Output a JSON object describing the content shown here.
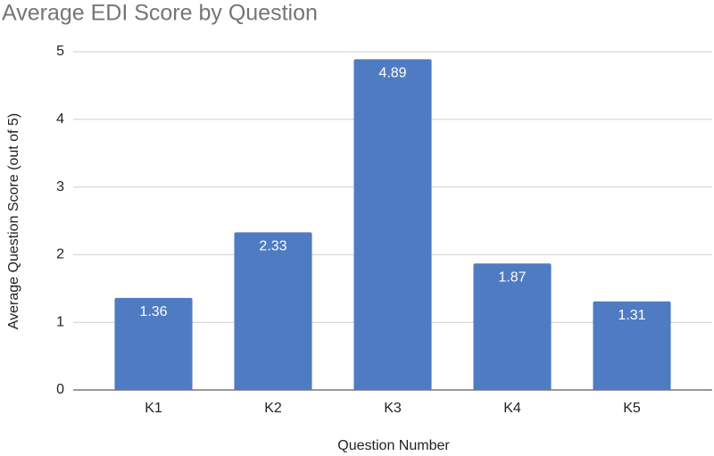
{
  "chart_data": {
    "type": "bar",
    "title": "Average EDI Score by Question",
    "x_label": "Question Number",
    "y_label": "Average Question Score (out of 5)",
    "categories": [
      "K1",
      "K2",
      "K3",
      "K4",
      "K5"
    ],
    "values": [
      1.36,
      2.33,
      4.89,
      1.87,
      1.31
    ],
    "color": "#4f7bc2",
    "ylim": [
      0,
      5
    ],
    "yticks": [
      0,
      1,
      2,
      3,
      4,
      5
    ],
    "grid": true
  }
}
